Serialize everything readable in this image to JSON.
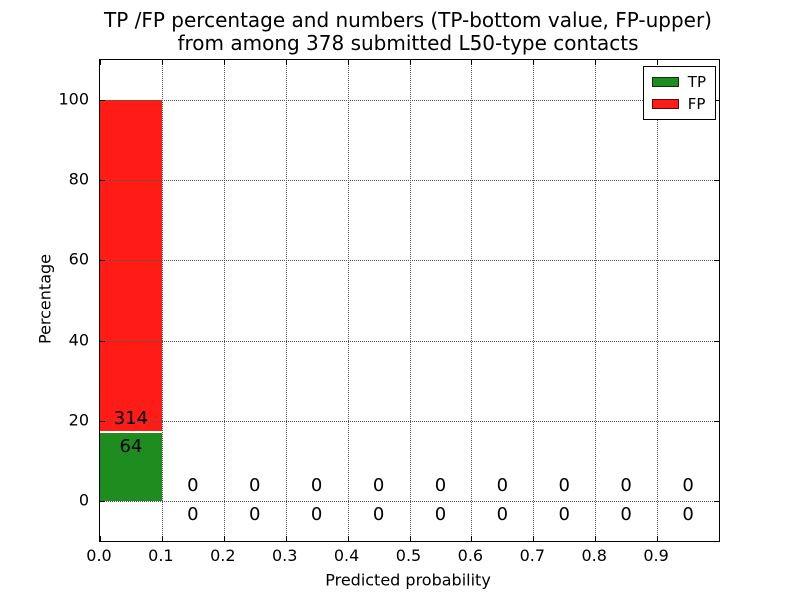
{
  "figure": {
    "title_line1": "TP /FP percentage and numbers (TP-bottom value, FP-upper)",
    "title_line2": "from among 378 submitted L50-type contacts"
  },
  "legend": {
    "items": [
      {
        "label": "TP",
        "color": "#1e8c1e"
      },
      {
        "label": "FP",
        "color": "#ff1b16"
      }
    ]
  },
  "chart_data": {
    "type": "bar",
    "stacked": true,
    "title": "TP /FP percentage and numbers (TP-bottom value, FP-upper)\nfrom among 378 submitted L50-type contacts",
    "xlabel": "Predicted probability",
    "ylabel": "Percentage",
    "total_contacts": 378,
    "xlim": [
      0.0,
      1.0
    ],
    "ylim": [
      -10,
      110
    ],
    "xtick_labels": [
      "0.0",
      "0.1",
      "0.2",
      "0.3",
      "0.4",
      "0.5",
      "0.6",
      "0.7",
      "0.8",
      "0.9"
    ],
    "xtick_values": [
      0.0,
      0.1,
      0.2,
      0.3,
      0.4,
      0.5,
      0.6,
      0.7,
      0.8,
      0.9
    ],
    "ytick_values": [
      0,
      20,
      40,
      60,
      80,
      100
    ],
    "grid": "dotted",
    "legend_position": "upper-right",
    "series": [
      {
        "name": "TP",
        "color": "#1e8c1e"
      },
      {
        "name": "FP",
        "color": "#ff1b16"
      }
    ],
    "bins": [
      {
        "range": [
          0.0,
          0.1
        ],
        "tp": 64,
        "fp": 314
      },
      {
        "range": [
          0.1,
          0.2
        ],
        "tp": 0,
        "fp": 0
      },
      {
        "range": [
          0.2,
          0.3
        ],
        "tp": 0,
        "fp": 0
      },
      {
        "range": [
          0.3,
          0.4
        ],
        "tp": 0,
        "fp": 0
      },
      {
        "range": [
          0.4,
          0.5
        ],
        "tp": 0,
        "fp": 0
      },
      {
        "range": [
          0.5,
          0.6
        ],
        "tp": 0,
        "fp": 0
      },
      {
        "range": [
          0.6,
          0.7
        ],
        "tp": 0,
        "fp": 0
      },
      {
        "range": [
          0.7,
          0.8
        ],
        "tp": 0,
        "fp": 0
      },
      {
        "range": [
          0.8,
          0.9
        ],
        "tp": 0,
        "fp": 0
      },
      {
        "range": [
          0.9,
          1.0
        ],
        "tp": 0,
        "fp": 0
      }
    ]
  }
}
